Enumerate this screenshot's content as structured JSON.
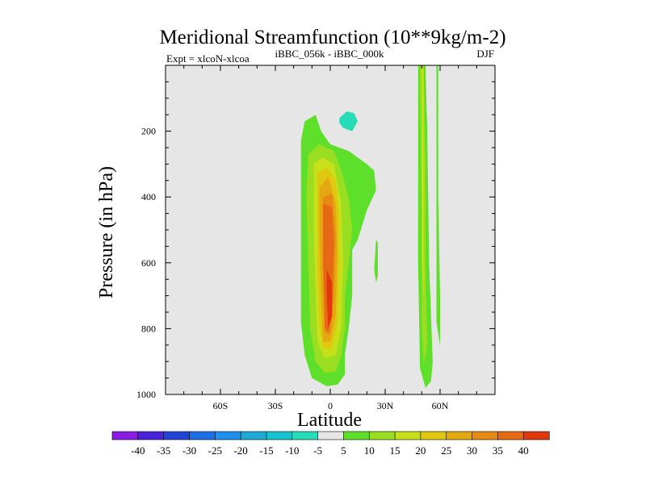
{
  "chart_data": {
    "type": "heatmap",
    "title": "Meridional Streamfunction (10**9kg/m-2)",
    "subtitle_left": "Expt = xlcoN-xlcoa",
    "subtitle_center": "iBBC_056k - iBBC_000k",
    "subtitle_right": "DJF",
    "xlabel": "Latitude",
    "ylabel": "Pressure (in hPa)",
    "xlim": [
      -90,
      90
    ],
    "ylim": [
      1000,
      0
    ],
    "x_ticks": [
      {
        "value": -60,
        "label": "60S"
      },
      {
        "value": -30,
        "label": "30S"
      },
      {
        "value": 0,
        "label": "0"
      },
      {
        "value": 30,
        "label": "30N"
      },
      {
        "value": 60,
        "label": "60N"
      }
    ],
    "y_ticks": [
      {
        "value": 200,
        "label": "200"
      },
      {
        "value": 400,
        "label": "400"
      },
      {
        "value": 600,
        "label": "600"
      },
      {
        "value": 800,
        "label": "800"
      },
      {
        "value": 1000,
        "label": "1000"
      }
    ],
    "background_color": "#e6e6e6",
    "colorbar": {
      "labels": [
        "-40",
        "-35",
        "-30",
        "-25",
        "-20",
        "-15",
        "-10",
        "-5",
        "5",
        "10",
        "15",
        "20",
        "25",
        "30",
        "35",
        "40"
      ],
      "colors": [
        "#8c1ae6",
        "#4a22dc",
        "#2244d6",
        "#1f6ee6",
        "#1f8ff0",
        "#1eaad8",
        "#14c4d0",
        "#27ddb8",
        "#e6e6e6",
        "#5ee02a",
        "#9ade22",
        "#c8e01a",
        "#e0c810",
        "#e6a810",
        "#e68a14",
        "#e66a14",
        "#e03808"
      ]
    },
    "regions": [
      {
        "name": "s-hemi-band",
        "level": -5,
        "points": [
          [
            -83,
            0
          ],
          [
            -78,
            0
          ],
          [
            -78,
            200
          ],
          [
            -80,
            500
          ],
          [
            -82,
            800
          ],
          [
            -80,
            840
          ],
          [
            -84,
            860
          ],
          [
            -85,
            700
          ],
          [
            -84,
            300
          ],
          [
            -84,
            0
          ]
        ]
      },
      {
        "name": "upper-neg-cell",
        "level": -5,
        "points": [
          [
            -6,
            150
          ],
          [
            -4,
            130
          ],
          [
            0,
            140
          ],
          [
            4,
            100
          ],
          [
            10,
            80
          ],
          [
            18,
            90
          ],
          [
            24,
            130
          ],
          [
            25,
            180
          ],
          [
            22,
            220
          ],
          [
            16,
            240
          ],
          [
            12,
            270
          ],
          [
            8,
            240
          ],
          [
            4,
            200
          ],
          [
            -2,
            200
          ],
          [
            -6,
            180
          ]
        ]
      },
      {
        "name": "upper-neg-core",
        "level": -10,
        "points": [
          [
            5,
            160
          ],
          [
            9,
            140
          ],
          [
            13,
            145
          ],
          [
            15,
            170
          ],
          [
            12,
            200
          ],
          [
            7,
            190
          ],
          [
            5,
            175
          ]
        ]
      },
      {
        "name": "main-cell-5",
        "level": 5,
        "points": [
          [
            -16,
            230
          ],
          [
            -14,
            170
          ],
          [
            -8,
            150
          ],
          [
            -5,
            200
          ],
          [
            0,
            240
          ],
          [
            10,
            260
          ],
          [
            20,
            300
          ],
          [
            24,
            320
          ],
          [
            25,
            380
          ],
          [
            20,
            440
          ],
          [
            15,
            530
          ],
          [
            12,
            560
          ],
          [
            12,
            700
          ],
          [
            10,
            800
          ],
          [
            8,
            880
          ],
          [
            8,
            940
          ],
          [
            4,
            970
          ],
          [
            -2,
            975
          ],
          [
            -10,
            950
          ],
          [
            -14,
            880
          ],
          [
            -16,
            780
          ],
          [
            -16,
            400
          ]
        ]
      },
      {
        "name": "main-cell-10",
        "level": 10,
        "points": [
          [
            -12,
            270
          ],
          [
            -6,
            240
          ],
          [
            2,
            260
          ],
          [
            6,
            320
          ],
          [
            10,
            400
          ],
          [
            12,
            500
          ],
          [
            10,
            600
          ],
          [
            8,
            700
          ],
          [
            8,
            800
          ],
          [
            6,
            880
          ],
          [
            3,
            930
          ],
          [
            -3,
            935
          ],
          [
            -8,
            900
          ],
          [
            -11,
            800
          ],
          [
            -12,
            600
          ],
          [
            -13,
            400
          ]
        ]
      },
      {
        "name": "main-cell-15",
        "level": 15,
        "points": [
          [
            -9,
            300
          ],
          [
            -4,
            280
          ],
          [
            2,
            300
          ],
          [
            6,
            420
          ],
          [
            7,
            600
          ],
          [
            6,
            800
          ],
          [
            3,
            880
          ],
          [
            -3,
            890
          ],
          [
            -7,
            840
          ],
          [
            -8,
            700
          ],
          [
            -9,
            500
          ]
        ]
      },
      {
        "name": "main-cell-20",
        "level": 20,
        "points": [
          [
            -7,
            330
          ],
          [
            -2,
            310
          ],
          [
            3,
            350
          ],
          [
            5,
            460
          ],
          [
            5,
            600
          ],
          [
            4,
            780
          ],
          [
            1,
            860
          ],
          [
            -4,
            860
          ],
          [
            -6,
            780
          ],
          [
            -7,
            600
          ],
          [
            -7,
            450
          ]
        ]
      },
      {
        "name": "main-cell-25",
        "level": 25,
        "points": [
          [
            -6,
            370
          ],
          [
            -1,
            340
          ],
          [
            3,
            420
          ],
          [
            4,
            560
          ],
          [
            3,
            760
          ],
          [
            0,
            840
          ],
          [
            -4,
            840
          ],
          [
            -5,
            720
          ],
          [
            -6,
            520
          ]
        ]
      },
      {
        "name": "main-cell-30",
        "level": 30,
        "points": [
          [
            -4,
            400
          ],
          [
            1,
            390
          ],
          [
            3,
            520
          ],
          [
            2,
            700
          ],
          [
            0,
            820
          ],
          [
            -3,
            810
          ],
          [
            -4,
            600
          ]
        ]
      },
      {
        "name": "main-cell-35",
        "level": 35,
        "points": [
          [
            -4,
            420
          ],
          [
            1,
            430
          ],
          [
            2,
            540
          ],
          [
            1,
            740
          ],
          [
            -1,
            810
          ],
          [
            -3,
            800
          ],
          [
            -4,
            600
          ]
        ]
      },
      {
        "name": "main-cell-40",
        "level": 40,
        "points": [
          [
            -2,
            620
          ],
          [
            1,
            660
          ],
          [
            1,
            760
          ],
          [
            -1,
            800
          ],
          [
            -2,
            700
          ]
        ]
      },
      {
        "name": "thin-band-30n",
        "level": -5,
        "points": [
          [
            33,
            330
          ],
          [
            35,
            320
          ],
          [
            34,
            480
          ],
          [
            33,
            560
          ],
          [
            32,
            500
          ],
          [
            32,
            400
          ]
        ]
      },
      {
        "name": "thin-band-25n",
        "level": 5,
        "points": [
          [
            25,
            530
          ],
          [
            26,
            540
          ],
          [
            26,
            640
          ],
          [
            25,
            660
          ],
          [
            24,
            620
          ]
        ]
      },
      {
        "name": "band-50n-5",
        "level": 5,
        "points": [
          [
            48,
            0
          ],
          [
            52,
            0
          ],
          [
            53,
            200
          ],
          [
            54,
            600
          ],
          [
            56,
            900
          ],
          [
            55,
            960
          ],
          [
            52,
            980
          ],
          [
            49,
            920
          ],
          [
            48,
            600
          ],
          [
            48,
            300
          ]
        ]
      },
      {
        "name": "band-50n-10",
        "level": 10,
        "points": [
          [
            49,
            0
          ],
          [
            51,
            0
          ],
          [
            52,
            300
          ],
          [
            52,
            600
          ],
          [
            53,
            850
          ],
          [
            51,
            910
          ],
          [
            50,
            800
          ],
          [
            50,
            500
          ]
        ]
      },
      {
        "name": "band-50n-15",
        "level": 15,
        "points": [
          [
            50,
            0
          ],
          [
            51,
            0
          ],
          [
            51,
            300
          ],
          [
            51,
            500
          ],
          [
            51,
            700
          ],
          [
            50,
            600
          ],
          [
            50,
            300
          ]
        ]
      },
      {
        "name": "band-60n-5",
        "level": 5,
        "points": [
          [
            58,
            0
          ],
          [
            59,
            0
          ],
          [
            59,
            400
          ],
          [
            60,
            700
          ],
          [
            60,
            850
          ],
          [
            58,
            780
          ],
          [
            58,
            400
          ]
        ]
      },
      {
        "name": "band-70n",
        "level": -5,
        "points": [
          [
            65,
            0
          ],
          [
            72,
            0
          ],
          [
            72,
            200
          ],
          [
            73,
            500
          ],
          [
            72,
            760
          ],
          [
            69,
            810
          ],
          [
            67,
            820
          ],
          [
            66,
            800
          ],
          [
            66,
            400
          ],
          [
            65,
            200
          ]
        ]
      }
    ]
  }
}
